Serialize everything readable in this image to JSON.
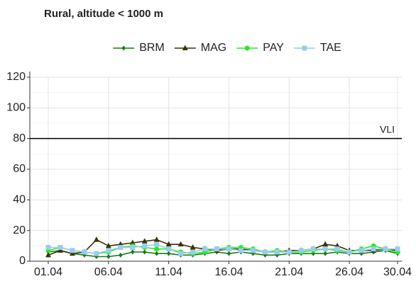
{
  "chart_data": {
    "type": "line",
    "title": "Rural, altitude < 1000 m",
    "categories": [
      "01.04",
      null,
      null,
      null,
      null,
      "06.04",
      null,
      null,
      null,
      null,
      "11.04",
      null,
      null,
      null,
      null,
      "16.04",
      null,
      null,
      null,
      null,
      "21.04",
      null,
      null,
      null,
      null,
      "26.04",
      null,
      null,
      null,
      "30.04"
    ],
    "series": [
      {
        "name": "BRM",
        "color": "#1b7a1b",
        "marker": "diamond",
        "values": [
          6,
          7,
          5,
          4,
          3,
          3,
          4,
          6,
          6,
          5,
          5,
          4,
          4,
          5,
          6,
          5,
          6,
          5,
          4,
          4,
          5,
          5,
          5,
          5,
          6,
          5,
          5,
          6,
          7,
          5
        ]
      },
      {
        "name": "MAG",
        "color": "#3a3300",
        "marker": "triangle",
        "values": [
          4,
          7,
          5,
          6,
          14,
          10,
          11,
          12,
          13,
          14,
          11,
          11,
          9,
          8,
          7,
          8,
          8,
          7,
          6,
          6,
          7,
          7,
          8,
          11,
          10,
          7,
          7,
          7,
          8,
          7
        ]
      },
      {
        "name": "PAY",
        "color": "#22ee22",
        "marker": "circle",
        "values": [
          7,
          9,
          7,
          6,
          5,
          6,
          9,
          10,
          9,
          8,
          8,
          6,
          5,
          6,
          8,
          9,
          9,
          8,
          6,
          7,
          6,
          6,
          7,
          8,
          7,
          6,
          8,
          10,
          8,
          6
        ]
      },
      {
        "name": "TAE",
        "color": "#99ccee",
        "marker": "square",
        "values": [
          9,
          9,
          7,
          6,
          5,
          7,
          9,
          9,
          10,
          11,
          8,
          5,
          6,
          8,
          8,
          8,
          7,
          7,
          6,
          6,
          6,
          7,
          8,
          8,
          8,
          6,
          7,
          8,
          8,
          8
        ]
      }
    ],
    "ylim": [
      0,
      120
    ],
    "yticks": [
      0,
      20,
      40,
      60,
      80,
      100,
      120
    ],
    "grid": true,
    "legend": "top",
    "hline": {
      "value": 80,
      "label": "VLI"
    }
  }
}
